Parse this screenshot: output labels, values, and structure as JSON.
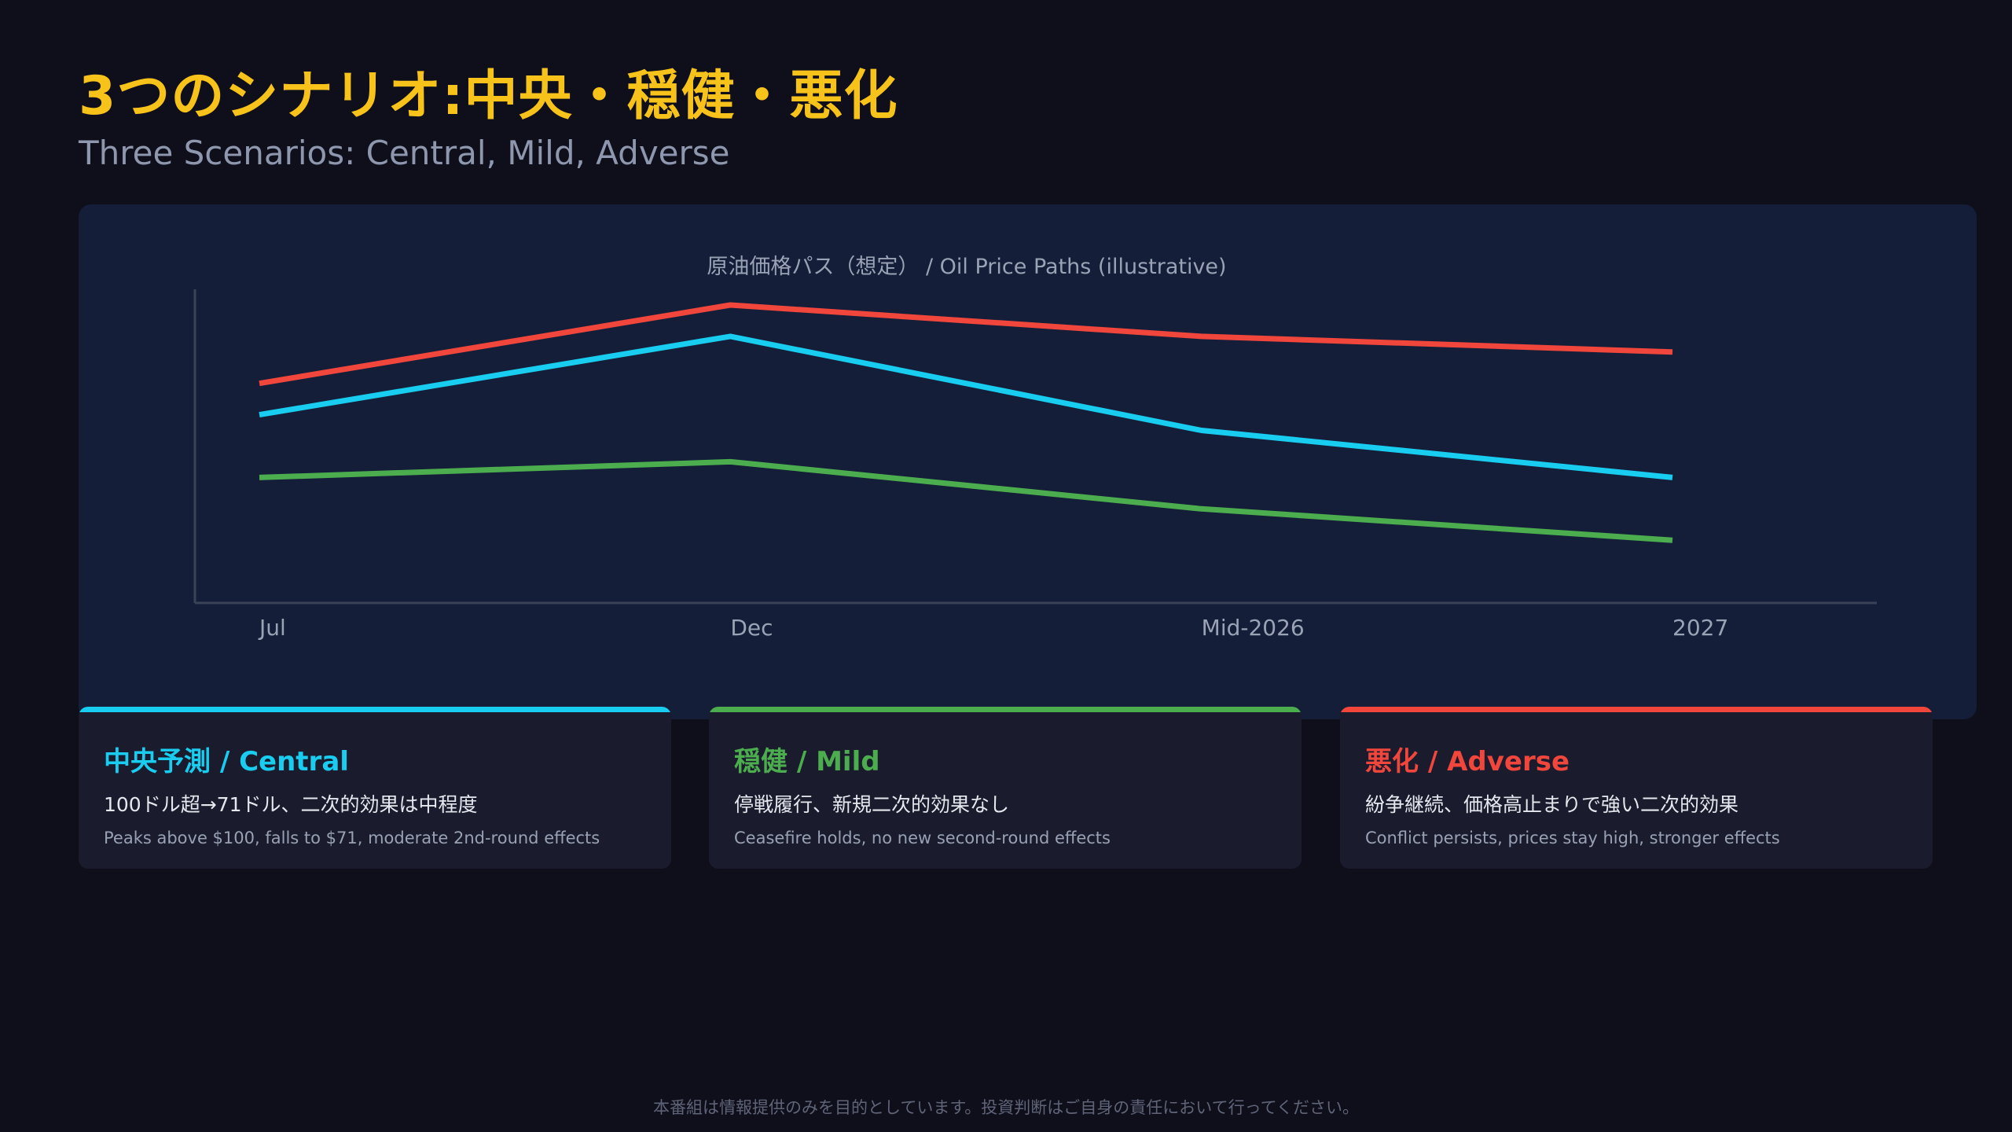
{
  "header": {
    "title": "3つのシナリオ:中央・穏健・悪化",
    "subtitle": "Three Scenarios: Central, Mild, Adverse"
  },
  "colors": {
    "background": "#0f0f1b",
    "panel": "#141e38",
    "title": "#f7c21a",
    "central": "#19cdf0",
    "mild": "#4cad4e",
    "adverse": "#f0463c"
  },
  "chart_data": {
    "type": "line",
    "title": "原油価格パス（想定） / Oil Price Paths (illustrative)",
    "categories": [
      "Jul",
      "Dec",
      "Mid-2026",
      "2027"
    ],
    "xlabel": "",
    "ylabel": "",
    "ylim": [
      0,
      100
    ],
    "grid": false,
    "legend": "none",
    "series": [
      {
        "key": "adverse",
        "color": "#f0463c",
        "values": [
          70,
          95,
          85,
          80
        ]
      },
      {
        "key": "central",
        "color": "#19cdf0",
        "values": [
          60,
          85,
          55,
          40
        ]
      },
      {
        "key": "mild",
        "color": "#4cad4e",
        "values": [
          40,
          45,
          30,
          20
        ]
      }
    ]
  },
  "scenarios": [
    {
      "key": "central",
      "color": "#19cdf0",
      "title": "中央予測 / Central",
      "jp": "100ドル超→71ドル、二次的効果は中程度",
      "en": "Peaks above $100, falls to $71, moderate 2nd-round effects"
    },
    {
      "key": "mild",
      "color": "#4cad4e",
      "title": "穏健 / Mild",
      "jp": "停戦履行、新規二次的効果なし",
      "en": "Ceasefire holds, no new second-round effects"
    },
    {
      "key": "adverse",
      "color": "#f0463c",
      "title": "悪化 / Adverse",
      "jp": "紛争継続、価格高止まりで強い二次的効果",
      "en": "Conflict persists, prices stay high, stronger effects"
    }
  ],
  "footer": {
    "disclaimer": "本番組は情報提供のみを目的としています。投資判断はご自身の責任において行ってください。"
  }
}
